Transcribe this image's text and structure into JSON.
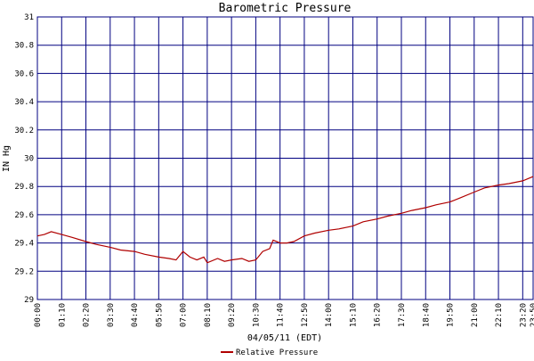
{
  "chart_data": {
    "type": "line",
    "title": "Barometric Pressure",
    "ylabel": "IN Hg",
    "xlabel": "04/05/11 (EDT)",
    "ylim": [
      29,
      31
    ],
    "yticks": [
      "29",
      "29.2",
      "29.4",
      "29.6",
      "29.8",
      "30",
      "30.2",
      "30.4",
      "30.6",
      "30.8",
      "31"
    ],
    "xticks": [
      "00:00",
      "01:10",
      "02:20",
      "03:30",
      "04:40",
      "05:50",
      "07:00",
      "08:10",
      "09:20",
      "10:30",
      "11:40",
      "12:50",
      "14:00",
      "15:10",
      "16:20",
      "17:30",
      "18:40",
      "19:50",
      "21:00",
      "22:10",
      "23:20",
      "23:50"
    ],
    "grid": true,
    "legend_position": "bottom",
    "colors": {
      "series": "#b00000",
      "grid": "#000080",
      "background": "#ffffff"
    },
    "series": [
      {
        "name": "Relative Pressure",
        "x": [
          "00:00",
          "00:20",
          "00:40",
          "01:10",
          "01:40",
          "02:20",
          "02:50",
          "03:30",
          "04:00",
          "04:40",
          "05:10",
          "05:50",
          "06:20",
          "06:40",
          "07:00",
          "07:20",
          "07:40",
          "08:00",
          "08:10",
          "08:40",
          "09:00",
          "09:20",
          "09:50",
          "10:10",
          "10:30",
          "10:50",
          "11:10",
          "11:20",
          "11:40",
          "12:00",
          "12:20",
          "12:50",
          "13:20",
          "14:00",
          "14:30",
          "15:10",
          "15:40",
          "16:20",
          "16:50",
          "17:30",
          "18:00",
          "18:40",
          "19:10",
          "19:50",
          "20:20",
          "21:00",
          "21:30",
          "22:10",
          "22:40",
          "23:20",
          "23:50"
        ],
        "values": [
          29.45,
          29.46,
          29.48,
          29.46,
          29.44,
          29.41,
          29.39,
          29.37,
          29.35,
          29.34,
          29.32,
          29.3,
          29.29,
          29.28,
          29.34,
          29.3,
          29.28,
          29.3,
          29.26,
          29.29,
          29.27,
          29.28,
          29.29,
          29.27,
          29.28,
          29.34,
          29.36,
          29.42,
          29.4,
          29.4,
          29.41,
          29.45,
          29.47,
          29.49,
          29.5,
          29.52,
          29.55,
          29.57,
          29.59,
          29.61,
          29.63,
          29.65,
          29.67,
          29.69,
          29.72,
          29.76,
          29.79,
          29.81,
          29.82,
          29.84,
          29.87
        ]
      }
    ]
  }
}
